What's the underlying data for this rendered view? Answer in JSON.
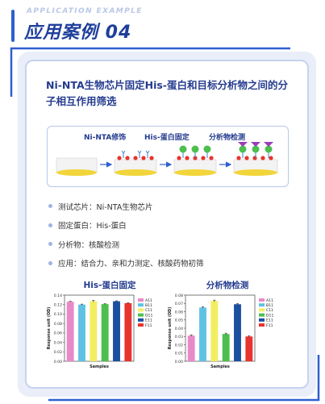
{
  "header": {
    "subtitle": "APPLICATION EXAMPLE",
    "title": "应用案例 04"
  },
  "section_title": "Ni-NTA生物芯片固定His-蛋白和目标分析物之间的分子相互作用筛选",
  "process": {
    "steps": [
      "Ni-NTA修饰",
      "His-蛋白固定",
      "分析物检测"
    ]
  },
  "bullets": [
    "测试芯片：Ni-NTA生物芯片",
    "固定蛋白：His-蛋白",
    "分析物：核酸检测",
    "应用：结合力、亲和力测定、核酸药物初筛"
  ],
  "colors": {
    "A11": "#e98ac8",
    "B11": "#5fc2e3",
    "C11": "#f2ee62",
    "D11": "#4cbf4e",
    "E11": "#1b4fa0",
    "F11": "#e8342e"
  },
  "chart_data": [
    {
      "type": "bar",
      "title": "His-蛋白固定",
      "xlabel": "Samples",
      "ylabel": "Response unit (OD)",
      "categories": [
        "A11",
        "B11",
        "C11",
        "D11",
        "E11",
        "F11"
      ],
      "values": [
        0.126,
        0.12,
        0.127,
        0.121,
        0.127,
        0.123
      ],
      "errors": [
        0.001,
        0.001,
        0.002,
        0.001,
        0.001,
        0.001
      ],
      "ylim": [
        0,
        0.14
      ],
      "yticks": [
        "0.00",
        "0.02",
        "0.04",
        "0.06",
        "0.08",
        "0.10",
        "0.12",
        "0.14"
      ],
      "legend": "right"
    },
    {
      "type": "bar",
      "title": "分析物检测",
      "xlabel": "Samples",
      "ylabel": "Response unit (OD)",
      "categories": [
        "A11",
        "B11",
        "C11",
        "D11",
        "E11",
        "F11"
      ],
      "values": [
        0.031,
        0.065,
        0.073,
        0.033,
        0.069,
        0.03
      ],
      "errors": [
        0.001,
        0.001,
        0.001,
        0.001,
        0.001,
        0.001
      ],
      "ylim": [
        0,
        0.08
      ],
      "yticks": [
        "0.00",
        "0.01",
        "0.02",
        "0.03",
        "0.04",
        "0.05",
        "0.06",
        "0.07",
        "0.08"
      ],
      "legend": "right"
    }
  ]
}
